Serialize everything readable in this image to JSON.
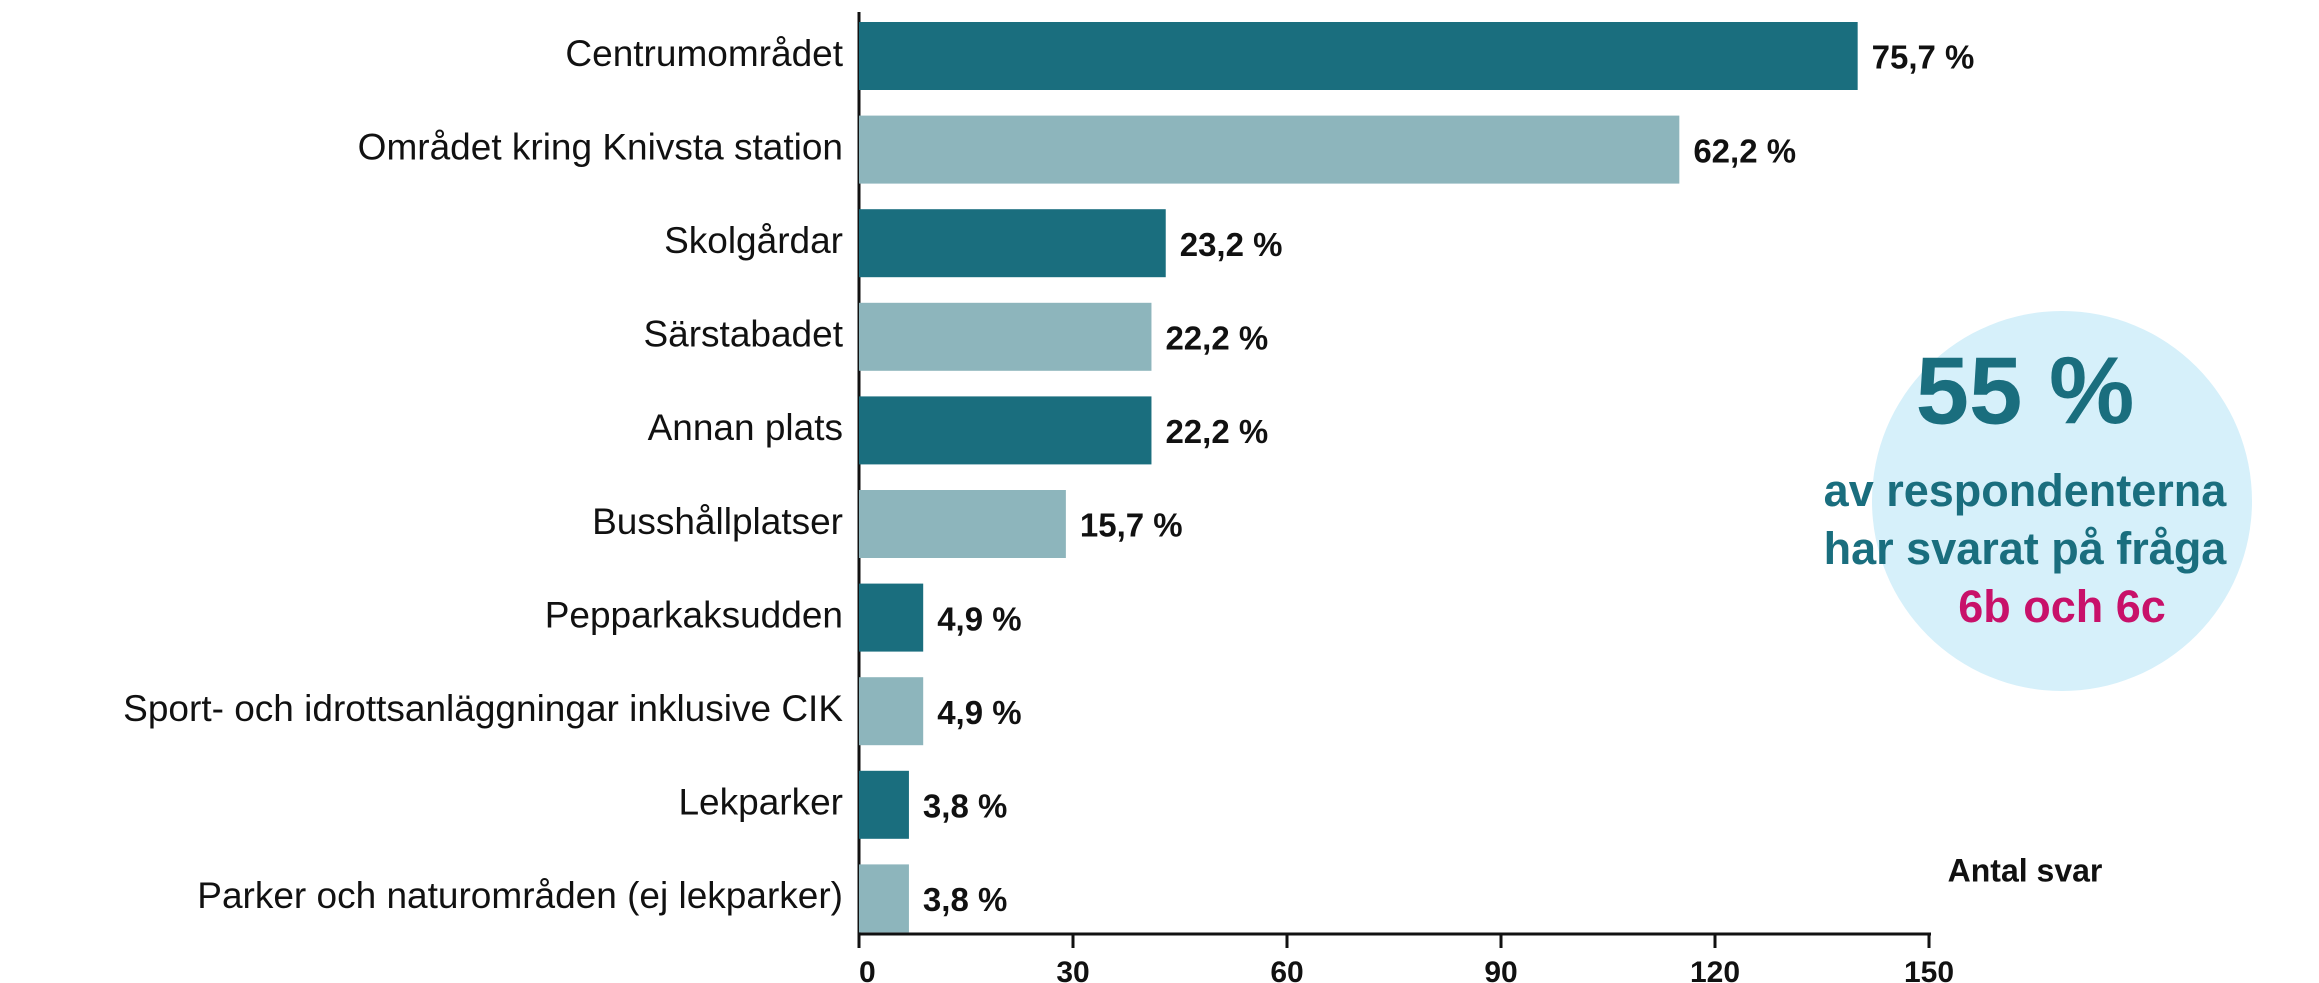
{
  "chart_data": {
    "type": "bar",
    "orientation": "horizontal",
    "categories": [
      "Centrumområdet",
      "Området kring Knivsta station",
      "Skolgårdar",
      "Särstabadet",
      "Annan plats",
      "Busshållplatser",
      "Pepparkaksudden",
      "Sport- och idrottsanläggningar inklusive CIK",
      "Lekparker",
      "Parker och naturområden (ej lekparker)"
    ],
    "values": [
      140,
      115,
      43,
      41,
      41,
      29,
      9,
      9,
      7,
      7
    ],
    "value_labels": [
      "75,7 %",
      "62,2 %",
      "23,2 %",
      "22,2 %",
      "22,2 %",
      "15,7 %",
      "4,9 %",
      "4,9 %",
      "3,8 %",
      "3,8 %"
    ],
    "colors": [
      "#1a6e7e",
      "#8db5bc",
      "#1a6e7e",
      "#8db5bc",
      "#1a6e7e",
      "#8db5bc",
      "#1a6e7e",
      "#8db5bc",
      "#1a6e7e",
      "#8db5bc"
    ],
    "xlabel": "Antal svar",
    "xlim": [
      0,
      150
    ],
    "xticks": [
      0,
      30,
      60,
      90,
      120,
      150
    ],
    "annotation": {
      "headline": "55 %",
      "lines": [
        "av respondenterna",
        "har svarat på fråga"
      ],
      "highlight": "6b och 6c"
    }
  }
}
